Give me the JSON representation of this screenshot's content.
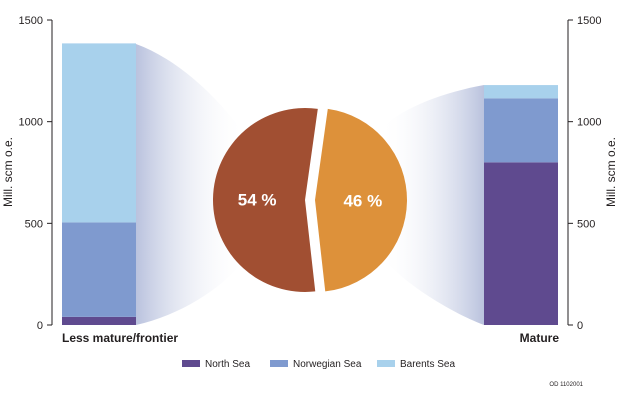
{
  "chart_data": [
    {
      "type": "bar",
      "stacked": true,
      "ylim": [
        0,
        1500
      ],
      "yticks": [
        0,
        500,
        1000,
        1500
      ],
      "ylabel_left": "Mill. scm o.e.",
      "ylabel_right": "Mill. scm o.e.",
      "categories": [
        "Less mature/frontier",
        "Mature"
      ],
      "series": [
        {
          "name": "North Sea",
          "color": "#5f4a8f",
          "values": [
            40,
            800
          ]
        },
        {
          "name": "Norwegian Sea",
          "color": "#7f9acf",
          "values": [
            465,
            315
          ]
        },
        {
          "name": "Barents Sea",
          "color": "#a8d1ec",
          "values": [
            880,
            65
          ]
        }
      ]
    },
    {
      "type": "pie",
      "slices": [
        {
          "label": "54 %",
          "value": 54,
          "color": "#a14f32"
        },
        {
          "label": "46 %",
          "value": 46,
          "color": "#dd913a"
        }
      ]
    }
  ],
  "footer": {
    "code": "OD 1102001"
  }
}
